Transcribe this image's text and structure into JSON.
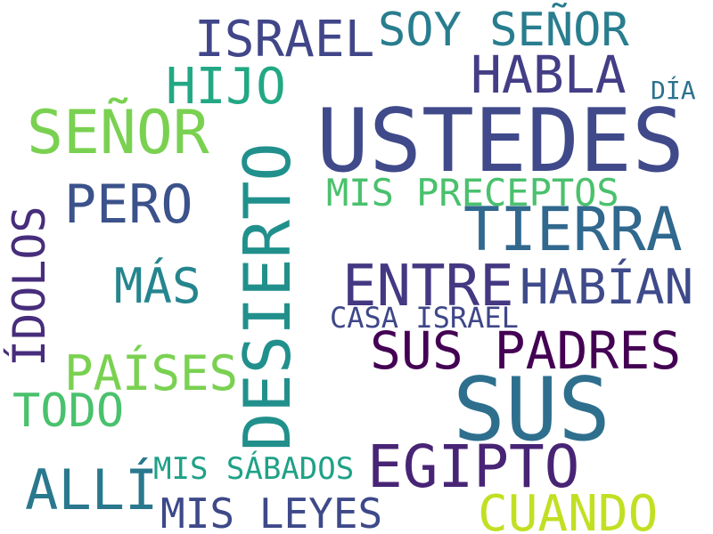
{
  "words": [
    {
      "text": "USTEDES",
      "color": "#404a8a"
    },
    {
      "text": "SUS",
      "color": "#2e6f8e"
    },
    {
      "text": "DESIERTO",
      "color": "#21908c"
    },
    {
      "text": "SEÑOR",
      "color": "#7ad151"
    },
    {
      "text": "TIERRA",
      "color": "#31688e"
    },
    {
      "text": "SUS PADRES",
      "color": "#440154"
    },
    {
      "text": "EGIPTO",
      "color": "#482475"
    },
    {
      "text": "ÍDOLOS",
      "color": "#472d7b"
    },
    {
      "text": "PERO",
      "color": "#3b528b"
    },
    {
      "text": "ISRAEL",
      "color": "#404688"
    },
    {
      "text": "SOY SEÑOR",
      "color": "#287d8e"
    },
    {
      "text": "HABLA",
      "color": "#433e85"
    },
    {
      "text": "HIJO",
      "color": "#22a884"
    },
    {
      "text": "ENTRE",
      "color": "#453882"
    },
    {
      "text": "HABÍAN",
      "color": "#3e4a89"
    },
    {
      "text": "MÁS",
      "color": "#25858e"
    },
    {
      "text": "PAÍSES",
      "color": "#7ad151"
    },
    {
      "text": "TODO",
      "color": "#4ac16d"
    },
    {
      "text": "ALLÍ",
      "color": "#2a788e"
    },
    {
      "text": "MIS LEYES",
      "color": "#3e4989"
    },
    {
      "text": "CUANDO",
      "color": "#c2df23"
    },
    {
      "text": "MIS PRECEPTOS",
      "color": "#4ac16d"
    },
    {
      "text": "MIS SÁBADOS",
      "color": "#1fa187"
    },
    {
      "text": "CASA ISRAEL",
      "color": "#3f4788"
    },
    {
      "text": "DÍA",
      "color": "#2c728e"
    }
  ]
}
